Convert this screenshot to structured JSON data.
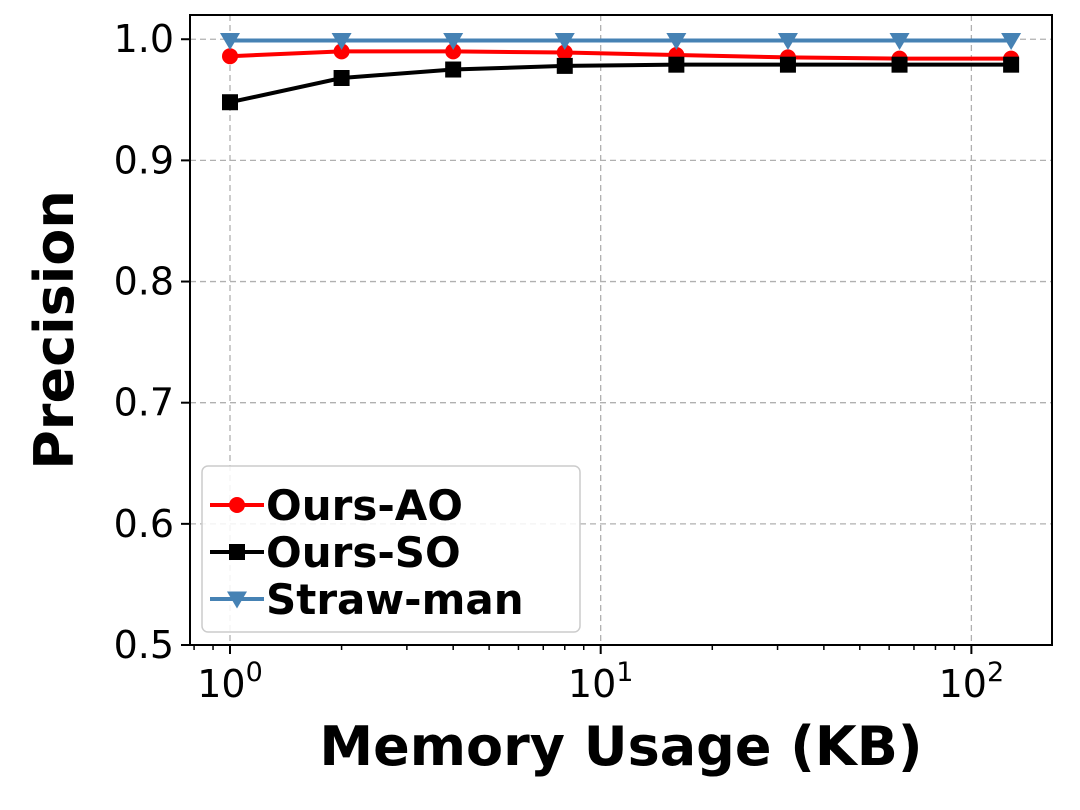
{
  "chart_data": {
    "type": "line",
    "xlabel": "Memory Usage (KB)",
    "ylabel": "Precision",
    "xscale": "log",
    "xlim": [
      0.78,
      165
    ],
    "ylim": [
      0.5,
      1.02
    ],
    "grid": true,
    "legend_position": "lower-left",
    "x": [
      1,
      2,
      4,
      8,
      16,
      32,
      64,
      128
    ],
    "x_ticks": [
      {
        "value": 1,
        "base": "10",
        "exp": "0"
      },
      {
        "value": 10,
        "base": "10",
        "exp": "1"
      },
      {
        "value": 100,
        "base": "10",
        "exp": "2"
      }
    ],
    "y_ticks": [
      {
        "value": 0.5,
        "label": "0.5"
      },
      {
        "value": 0.6,
        "label": "0.6"
      },
      {
        "value": 0.7,
        "label": "0.7"
      },
      {
        "value": 0.8,
        "label": "0.8"
      },
      {
        "value": 0.9,
        "label": "0.9"
      },
      {
        "value": 1.0,
        "label": "1.0"
      }
    ],
    "series": [
      {
        "name": "Ours-AO",
        "color": "#ff0000",
        "marker": "circle",
        "values": [
          0.986,
          0.99,
          0.99,
          0.989,
          0.987,
          0.985,
          0.984,
          0.984
        ]
      },
      {
        "name": "Ours-SO",
        "color": "#000000",
        "marker": "square",
        "values": [
          0.948,
          0.968,
          0.975,
          0.978,
          0.979,
          0.979,
          0.979,
          0.979
        ]
      },
      {
        "name": "Straw-man",
        "color": "#4682b4",
        "marker": "triangle-down",
        "values": [
          0.999,
          0.999,
          0.999,
          0.999,
          0.999,
          0.999,
          0.999,
          0.999
        ]
      }
    ]
  }
}
